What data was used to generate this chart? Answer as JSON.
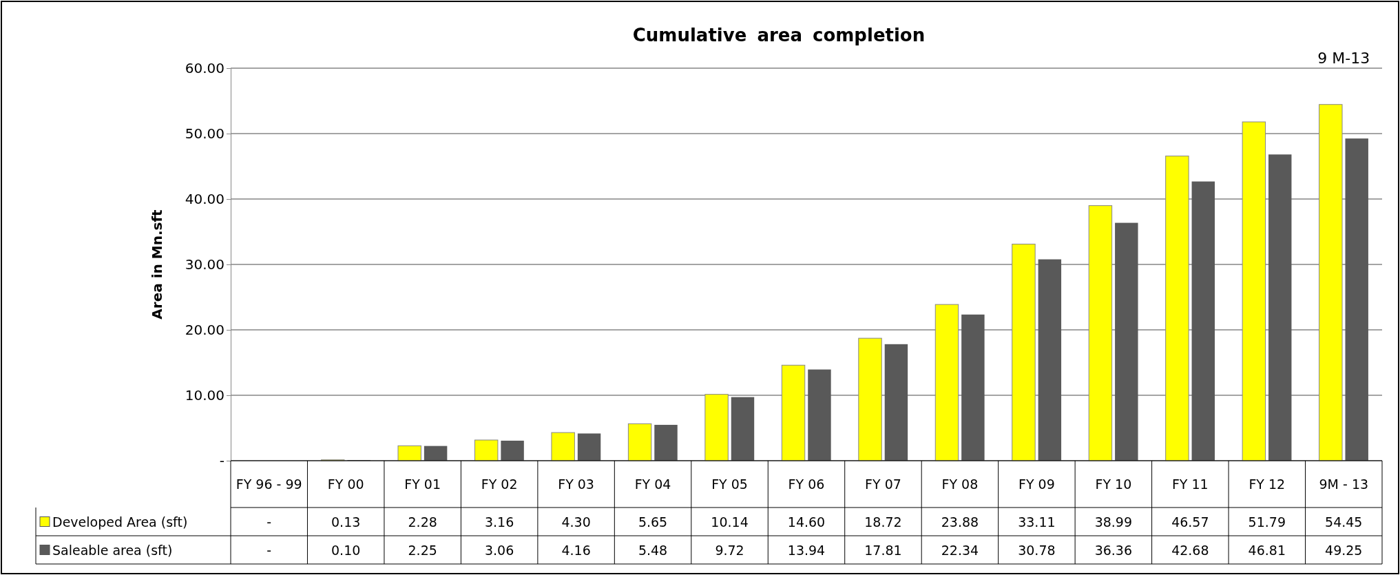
{
  "chart_data": {
    "type": "bar",
    "title": "Cumulative area completion",
    "ylabel": "Area in Mn.sft",
    "categories": [
      "FY 96 - 99",
      "FY 00",
      "FY 01",
      "FY 02",
      "FY 03",
      "FY 04",
      "FY 05",
      "FY 06",
      "FY 07",
      "FY 08",
      "FY 09",
      "FY 10",
      "FY 11",
      "FY 12",
      "9M - 13"
    ],
    "series": [
      {
        "name": "Developed Area (sft)",
        "color": "#ffff00",
        "values": [
          0,
          0.13,
          2.28,
          3.16,
          4.3,
          5.65,
          10.14,
          14.6,
          18.72,
          23.88,
          33.11,
          38.99,
          46.57,
          51.79,
          54.45
        ],
        "value_labels": [
          "-",
          "0.13",
          "2.28",
          "3.16",
          "4.30",
          "5.65",
          "10.14",
          "14.60",
          "18.72",
          "23.88",
          "33.11",
          "38.99",
          "46.57",
          "51.79",
          "54.45"
        ]
      },
      {
        "name": "Saleable area (sft)",
        "color": "#595959",
        "values": [
          0,
          0.1,
          2.25,
          3.06,
          4.16,
          5.48,
          9.72,
          13.94,
          17.81,
          22.34,
          30.78,
          36.36,
          42.68,
          46.81,
          49.25
        ],
        "value_labels": [
          "-",
          "0.10",
          "2.25",
          "3.06",
          "4.16",
          "5.48",
          "9.72",
          "13.94",
          "17.81",
          "22.34",
          "30.78",
          "36.36",
          "42.68",
          "46.81",
          "49.25"
        ]
      }
    ],
    "ylim": [
      0,
      60
    ],
    "yticks": [
      {
        "value": 0,
        "label": "-"
      },
      {
        "value": 10,
        "label": "10.00"
      },
      {
        "value": 20,
        "label": "20.00"
      },
      {
        "value": 30,
        "label": "30.00"
      },
      {
        "value": 40,
        "label": "40.00"
      },
      {
        "value": 50,
        "label": "50.00"
      },
      {
        "value": 60,
        "label": "60.00"
      }
    ],
    "grid": "y",
    "legend": "bottom left",
    "data_labels": true,
    "annotations": [
      {
        "text": "9 M-13",
        "x": "9M - 13",
        "y": 54.45
      }
    ]
  }
}
